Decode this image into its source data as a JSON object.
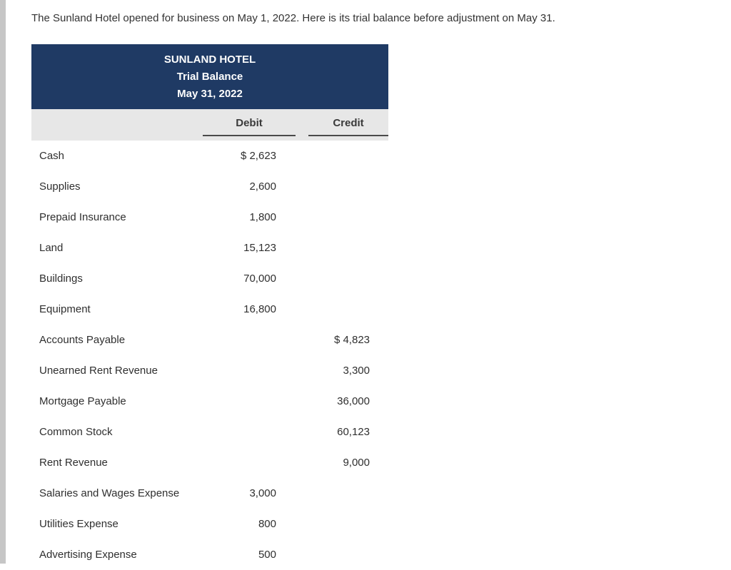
{
  "page": {
    "intro": "The Sunland Hotel opened for business on May 1, 2022. Here is its trial balance before adjustment on May 31."
  },
  "table": {
    "title": "SUNLAND HOTEL",
    "subtitle": "Trial Balance",
    "date": "May 31, 2022",
    "columns": {
      "debit": "Debit",
      "credit": "Credit"
    },
    "rows": [
      {
        "label": "Cash",
        "debit": "$ 2,623",
        "credit": ""
      },
      {
        "label": "Supplies",
        "debit": "2,600",
        "credit": ""
      },
      {
        "label": "Prepaid Insurance",
        "debit": "1,800",
        "credit": ""
      },
      {
        "label": "Land",
        "debit": "15,123",
        "credit": ""
      },
      {
        "label": "Buildings",
        "debit": "70,000",
        "credit": ""
      },
      {
        "label": "Equipment",
        "debit": "16,800",
        "credit": ""
      },
      {
        "label": "Accounts Payable",
        "debit": "",
        "credit": "$ 4,823"
      },
      {
        "label": "Unearned Rent Revenue",
        "debit": "",
        "credit": "3,300"
      },
      {
        "label": "Mortgage Payable",
        "debit": "",
        "credit": "36,000"
      },
      {
        "label": "Common Stock",
        "debit": "",
        "credit": "60,123"
      },
      {
        "label": "Rent Revenue",
        "debit": "",
        "credit": "9,000"
      },
      {
        "label": "Salaries and Wages Expense",
        "debit": "3,000",
        "credit": ""
      },
      {
        "label": "Utilities Expense",
        "debit": "800",
        "credit": ""
      },
      {
        "label": "Advertising Expense",
        "debit": "500",
        "credit": ""
      }
    ]
  },
  "colors": {
    "header_bg": "#1f3a64",
    "header_text": "#ffffff",
    "column_header_bg": "#e7e7e7"
  }
}
